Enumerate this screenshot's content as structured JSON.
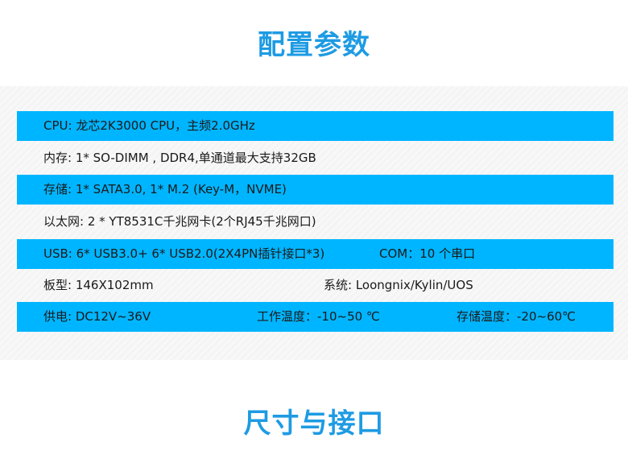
{
  "titles": {
    "params": "配置参数",
    "size": "尺寸与接口"
  },
  "rows": [
    {
      "a": "CPU:  龙芯2K3000 CPU，主频2.0GHz"
    },
    {
      "a": "内存:  1* SO-DIMM , DDR4,单通道最大支持32GB"
    },
    {
      "a": "存储: 1* SATA3.0,  1* M.2 (Key-M，NVME)"
    },
    {
      "a": "以太网:  2 * YT8531C千兆网卡(2个RJ45千兆网口)"
    },
    {
      "a": "USB: 6* USB3.0+ 6* USB2.0(2X4PN插针接口*3)",
      "b": "COM：10 个串口"
    },
    {
      "a": "板型: 146X102mm",
      "b": "系统: Loongnix/Kylin/UOS"
    },
    {
      "a": "供电: DC12V~36V",
      "b": "工作温度：-10~50 ℃",
      "c": "存储温度：-20~60℃"
    }
  ],
  "colors": {
    "accent": "#1e9be3",
    "row_blue": "#00b5ff"
  }
}
